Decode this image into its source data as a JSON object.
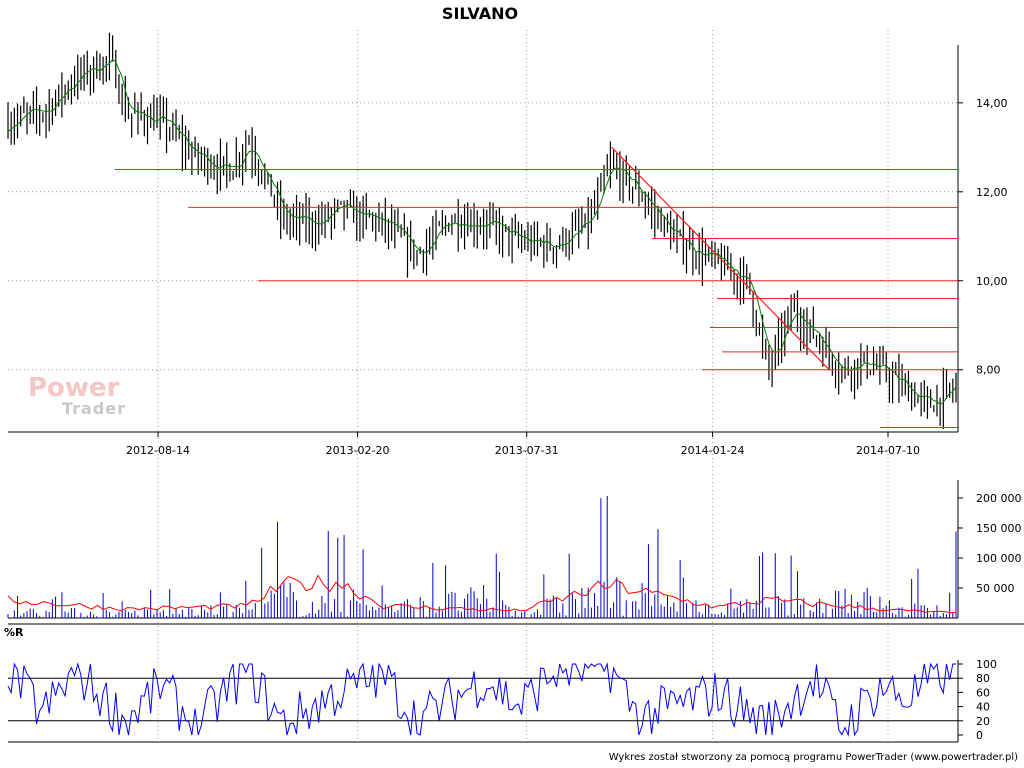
{
  "title": "SILVANO",
  "footer": "Wykres został stworzony za pomocą programu PowerTrader (www.powertrader.pl)",
  "logo": {
    "line1": "Power",
    "line2": "Trader"
  },
  "colors": {
    "price": "#000000",
    "ma": "#008000",
    "support": "#ff2020",
    "volume": "#0000cc",
    "volume_ma": "#ff0000",
    "wr": "#0000ff",
    "grid": "#999999"
  },
  "chart_data": [
    {
      "type": "candlestick",
      "panel": "price",
      "title": "SILVANO",
      "x_ticks": [
        "2012-08-14",
        "2013-02-20",
        "2013-07-31",
        "2014-01-24",
        "2014-07-10"
      ],
      "y_ticks": [
        "14,00",
        "12,00",
        "10,00",
        "8,00"
      ],
      "ylim": [
        6.6,
        15.3
      ],
      "grid": true,
      "series": [
        {
          "kind": "close",
          "x": [
            "2012-05-01",
            "2012-06-01",
            "2012-07-01",
            "2012-08-01",
            "2012-08-14",
            "2012-09-15",
            "2012-10-15",
            "2012-11-15",
            "2012-12-01",
            "2013-01-01",
            "2013-02-01",
            "2013-02-20",
            "2013-04-01",
            "2013-05-01",
            "2013-06-01",
            "2013-07-01",
            "2013-07-31",
            "2013-09-01",
            "2013-10-01",
            "2013-10-20",
            "2013-11-15",
            "2013-12-15",
            "2014-01-24",
            "2014-02-20",
            "2014-03-10",
            "2014-04-01",
            "2014-04-20",
            "2014-05-15",
            "2014-06-01",
            "2014-06-20",
            "2014-07-10",
            "2014-08-01",
            "2014-08-25"
          ],
          "y": [
            13.6,
            13.8,
            14.6,
            15.0,
            13.8,
            13.6,
            12.8,
            12.5,
            13.2,
            11.4,
            11.3,
            11.6,
            11.3,
            10.6,
            11.4,
            11.3,
            10.9,
            10.8,
            11.3,
            12.6,
            12.0,
            11.0,
            10.4,
            10.0,
            8.0,
            9.4,
            8.8,
            8.0,
            8.2,
            8.0,
            7.6,
            7.2,
            7.6
          ]
        }
      ],
      "support_levels": [
        12.5,
        11.65,
        10.95,
        10.0,
        9.6,
        8.95,
        8.4,
        8.0,
        6.7
      ],
      "trendline": {
        "from": [
          "2013-10-20",
          13.0
        ],
        "to": [
          "2014-05-15",
          8.0
        ]
      }
    },
    {
      "type": "bar",
      "panel": "volume",
      "y_ticks": [
        "200 000",
        "150 000",
        "100 000",
        "50 000"
      ],
      "ylim": [
        0,
        230000
      ],
      "series": [
        {
          "kind": "volume",
          "x": [
            "2012-05-01",
            "2012-08-14",
            "2012-12-01",
            "2013-01-01",
            "2013-02-01",
            "2013-02-20",
            "2013-04-01",
            "2013-07-01",
            "2013-07-31",
            "2013-10-20",
            "2014-01-24",
            "2014-03-10",
            "2014-04-20",
            "2014-05-15",
            "2014-07-10",
            "2014-08-25"
          ],
          "y": [
            55000,
            45000,
            70000,
            200000,
            95000,
            195000,
            80000,
            160000,
            45000,
            220000,
            60000,
            120000,
            90000,
            220000,
            60000,
            150000
          ]
        },
        {
          "kind": "volume-average",
          "x": [
            "2012-05-01",
            "2012-08-14",
            "2012-12-01",
            "2013-01-01",
            "2013-02-20",
            "2013-04-01",
            "2013-07-31",
            "2013-10-20",
            "2014-01-24",
            "2014-03-10",
            "2014-05-15",
            "2014-07-10",
            "2014-08-25"
          ],
          "y": [
            30000,
            15000,
            20000,
            55000,
            60000,
            20000,
            12000,
            55000,
            18000,
            30000,
            20000,
            12000,
            8000
          ]
        }
      ]
    },
    {
      "type": "line",
      "panel": "%R",
      "title": "%R",
      "y_ticks": [
        "100",
        "80",
        "60",
        "40",
        "20",
        "0"
      ],
      "ylim": [
        0,
        100
      ],
      "reference_lines": [
        80,
        20
      ],
      "series": [
        {
          "kind": "%R",
          "x": [
            "2012-05-01",
            "2012-06-01",
            "2012-07-01",
            "2012-08-14",
            "2012-09-15",
            "2012-10-15",
            "2012-12-01",
            "2013-01-01",
            "2013-02-20",
            "2013-04-01",
            "2013-05-01",
            "2013-07-01",
            "2013-07-31",
            "2013-09-01",
            "2013-10-20",
            "2013-11-15",
            "2014-01-24",
            "2014-03-10",
            "2014-04-20",
            "2014-05-15",
            "2014-06-20",
            "2014-07-10",
            "2014-08-25"
          ],
          "y": [
            95,
            30,
            90,
            20,
            70,
            10,
            95,
            15,
            60,
            85,
            20,
            80,
            40,
            90,
            95,
            25,
            60,
            15,
            80,
            10,
            70,
            50,
            100
          ]
        }
      ]
    }
  ]
}
